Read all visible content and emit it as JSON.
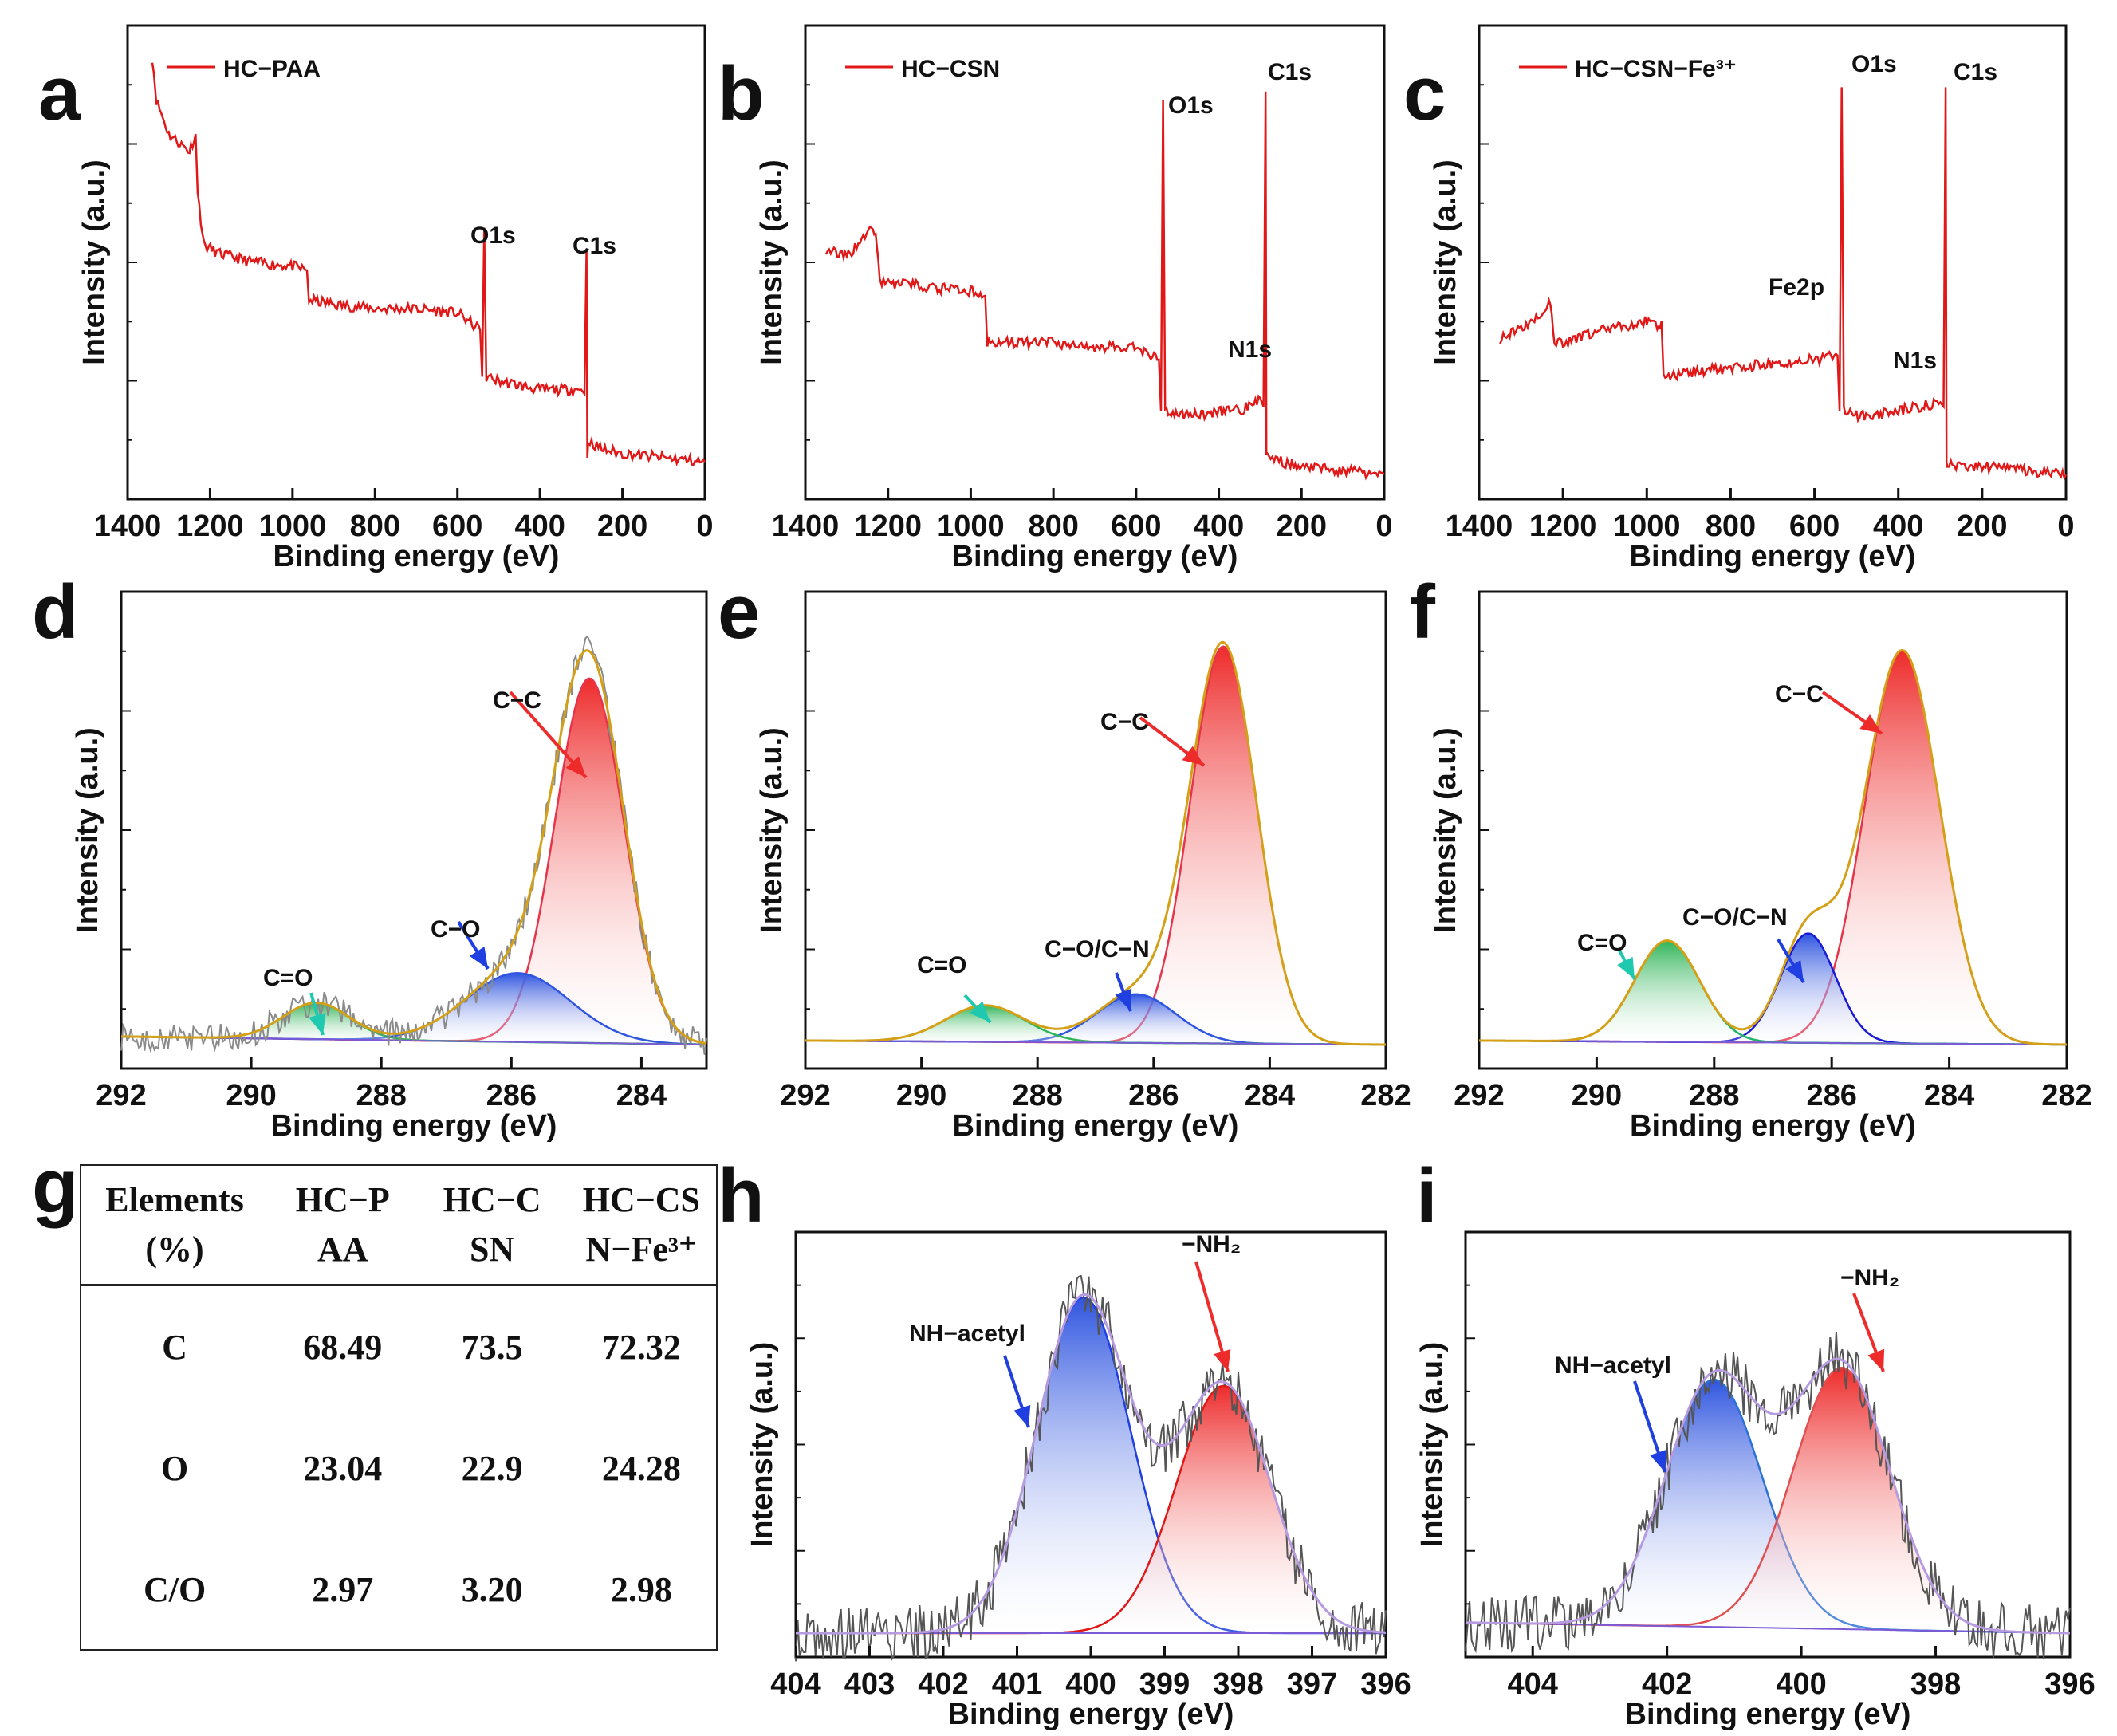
{
  "colors": {
    "survey": "#e01818",
    "raw": "#8a8a8a",
    "envelope": "#d4a017",
    "red_fill": "#ee2b2b",
    "blue_fill": "#2f55e0",
    "green_fill": "#2fb457",
    "arrow_red": "#ee2b2b",
    "arrow_blue": "#1f3fe0",
    "arrow_teal": "#1fc9b0",
    "baseline": "#7a5ad6"
  },
  "chart_data": [
    {
      "panel": "a",
      "type": "line",
      "legend": "HC−PAA",
      "xlabel": "Binding energy (eV)",
      "ylabel": "Intensity (a.u.)",
      "xlim": [
        1400,
        0
      ],
      "xticks": [
        "1400",
        "1200",
        "1000",
        "800",
        "600",
        "400",
        "200",
        "0"
      ],
      "series": [
        {
          "name": "HC−PAA",
          "x": [
            1340,
            1330,
            1300,
            1250,
            1235,
            1230,
            1215,
            1180,
            1100,
            1000,
            965,
            960,
            900,
            800,
            700,
            600,
            545,
            540,
            535,
            530,
            500,
            450,
            400,
            300,
            292,
            287,
            285,
            283,
            250,
            200,
            100,
            0
          ],
          "y": [
            1.0,
            0.9,
            0.82,
            0.78,
            0.82,
            0.68,
            0.56,
            0.54,
            0.52,
            0.51,
            0.5,
            0.43,
            0.42,
            0.41,
            0.41,
            0.4,
            0.36,
            0.25,
            0.6,
            0.25,
            0.24,
            0.23,
            0.22,
            0.22,
            0.21,
            0.55,
            0.06,
            0.1,
            0.08,
            0.07,
            0.06,
            0.05
          ]
        }
      ],
      "annotations": [
        {
          "text": "O1s",
          "x": 532
        },
        {
          "text": "C1s",
          "x": 285
        }
      ]
    },
    {
      "panel": "b",
      "type": "line",
      "legend": "HC−CSN",
      "xlabel": "Binding energy (eV)",
      "ylabel": "Intensity (a.u.)",
      "xlim": [
        1400,
        0
      ],
      "xticks": [
        "1400",
        "1200",
        "1000",
        "800",
        "600",
        "400",
        "200",
        "0"
      ],
      "series": [
        {
          "name": "HC−CSN",
          "x": [
            1350,
            1300,
            1240,
            1230,
            1220,
            1215,
            1180,
            1100,
            1000,
            965,
            960,
            900,
            800,
            700,
            600,
            545,
            540,
            535,
            530,
            500,
            450,
            400,
            350,
            300,
            292,
            287,
            285,
            283,
            250,
            200,
            100,
            0
          ],
          "y": [
            0.55,
            0.53,
            0.6,
            0.58,
            0.48,
            0.47,
            0.47,
            0.46,
            0.45,
            0.44,
            0.33,
            0.33,
            0.33,
            0.32,
            0.32,
            0.29,
            0.17,
            0.9,
            0.17,
            0.16,
            0.16,
            0.17,
            0.17,
            0.2,
            0.18,
            0.92,
            0.07,
            0.06,
            0.05,
            0.04,
            0.03,
            0.02
          ]
        }
      ],
      "annotations": [
        {
          "text": "O1s",
          "x": 532
        },
        {
          "text": "N1s",
          "x": 400
        },
        {
          "text": "C1s",
          "x": 285
        }
      ]
    },
    {
      "panel": "c",
      "type": "line",
      "legend": "HC−CSN−Fe³⁺",
      "xlabel": "Binding energy (eV)",
      "ylabel": "Intensity (a.u.)",
      "xlim": [
        1400,
        0
      ],
      "xticks": [
        "1400",
        "1200",
        "1000",
        "800",
        "600",
        "400",
        "200",
        "0"
      ],
      "series": [
        {
          "name": "HC−CSN−Fe³⁺",
          "x": [
            1350,
            1300,
            1240,
            1230,
            1220,
            1200,
            1100,
            1000,
            975,
            965,
            960,
            900,
            800,
            710,
            700,
            600,
            545,
            540,
            535,
            530,
            500,
            450,
            400,
            350,
            300,
            292,
            287,
            285,
            283,
            250,
            200,
            100,
            0
          ],
          "y": [
            0.34,
            0.36,
            0.41,
            0.43,
            0.33,
            0.33,
            0.36,
            0.38,
            0.37,
            0.38,
            0.25,
            0.26,
            0.27,
            0.28,
            0.28,
            0.29,
            0.3,
            0.17,
            0.93,
            0.17,
            0.16,
            0.16,
            0.17,
            0.18,
            0.19,
            0.18,
            0.93,
            0.05,
            0.05,
            0.04,
            0.04,
            0.03,
            0.02
          ]
        }
      ],
      "annotations": [
        {
          "text": "O1s",
          "x": 532
        },
        {
          "text": "Fe2p",
          "x": 710
        },
        {
          "text": "N1s",
          "x": 400
        },
        {
          "text": "C1s",
          "x": 285
        }
      ]
    },
    {
      "panel": "d",
      "type": "area",
      "xlabel": "Binding energy (eV)",
      "ylabel": "Intensity (a.u.)",
      "xlim": [
        292,
        283
      ],
      "xticks": [
        "292",
        "290",
        "288",
        "286",
        "284"
      ],
      "peaks": [
        {
          "name": "C−C",
          "center": 284.8,
          "height": 0.9,
          "fwhm": 1.25
        },
        {
          "name": "C−O",
          "center": 285.9,
          "height": 0.17,
          "fwhm": 1.9
        },
        {
          "name": "C=O",
          "center": 289.0,
          "height": 0.09,
          "fwhm": 1.2
        }
      ],
      "annotations": [
        {
          "text": "C−C"
        },
        {
          "text": "C−O"
        },
        {
          "text": "C=O"
        }
      ]
    },
    {
      "panel": "e",
      "type": "area",
      "xlabel": "Binding energy (eV)",
      "ylabel": "Intensity (a.u.)",
      "xlim": [
        292,
        282
      ],
      "xticks": [
        "292",
        "290",
        "288",
        "286",
        "284",
        "282"
      ],
      "peaks": [
        {
          "name": "C−C",
          "center": 284.8,
          "height": 0.98,
          "fwhm": 1.35
        },
        {
          "name": "C−O/C−N",
          "center": 286.3,
          "height": 0.12,
          "fwhm": 1.6
        },
        {
          "name": "C=O",
          "center": 288.9,
          "height": 0.09,
          "fwhm": 1.6
        }
      ],
      "annotations": [
        {
          "text": "C−C"
        },
        {
          "text": "C−O/C−N"
        },
        {
          "text": "C=O"
        }
      ]
    },
    {
      "panel": "f",
      "type": "area",
      "xlabel": "Binding energy (eV)",
      "ylabel": "Intensity (a.u.)",
      "xlim": [
        292,
        282
      ],
      "xticks": [
        "292",
        "290",
        "288",
        "286",
        "284",
        "282"
      ],
      "peaks": [
        {
          "name": "C−C",
          "center": 284.8,
          "height": 0.97,
          "fwhm": 1.5
        },
        {
          "name": "C−O/C−N",
          "center": 286.4,
          "height": 0.27,
          "fwhm": 1.1
        },
        {
          "name": "C=O",
          "center": 288.8,
          "height": 0.25,
          "fwhm": 1.3
        }
      ],
      "annotations": [
        {
          "text": "C−C"
        },
        {
          "text": "C−O/C−N"
        },
        {
          "text": "C=O"
        }
      ]
    },
    {
      "panel": "g",
      "type": "table",
      "columns": [
        [
          "Elements",
          "(%)"
        ],
        [
          "HC−P",
          "AA"
        ],
        [
          "HC−C",
          "SN"
        ],
        [
          "HC−CS",
          "N−Fe³⁺"
        ]
      ],
      "rows": [
        [
          "C",
          "68.49",
          "73.5",
          "72.32"
        ],
        [
          "O",
          "23.04",
          "22.9",
          "24.28"
        ],
        [
          "C/O",
          "2.97",
          "3.20",
          "2.98"
        ]
      ]
    },
    {
      "panel": "h",
      "type": "area",
      "xlabel": "Binding energy (eV)",
      "ylabel": "Intensity (a.u.)",
      "xlim": [
        404,
        396
      ],
      "xticks": [
        "404",
        "403",
        "402",
        "401",
        "400",
        "399",
        "398",
        "397",
        "396"
      ],
      "peaks": [
        {
          "name": "NH−acetyl",
          "center": 400.1,
          "height": 0.95,
          "fwhm": 1.5
        },
        {
          "name": "−NH₂",
          "center": 398.2,
          "height": 0.7,
          "fwhm": 1.5
        }
      ],
      "annotations": [
        {
          "text": "NH−acetyl"
        },
        {
          "text": "−NH₂"
        }
      ]
    },
    {
      "panel": "i",
      "type": "area",
      "xlabel": "Binding energy (eV)",
      "ylabel": "Intensity (a.u.)",
      "xlim": [
        405,
        396
      ],
      "xticks": [
        "404",
        "402",
        "400",
        "398",
        "396"
      ],
      "peaks": [
        {
          "name": "NH−acetyl",
          "center": 401.3,
          "height": 0.7,
          "fwhm": 1.7
        },
        {
          "name": "−NH₂",
          "center": 399.4,
          "height": 0.74,
          "fwhm": 1.7
        }
      ],
      "annotations": [
        {
          "text": "NH−acetyl"
        },
        {
          "text": "−NH₂"
        }
      ]
    }
  ]
}
